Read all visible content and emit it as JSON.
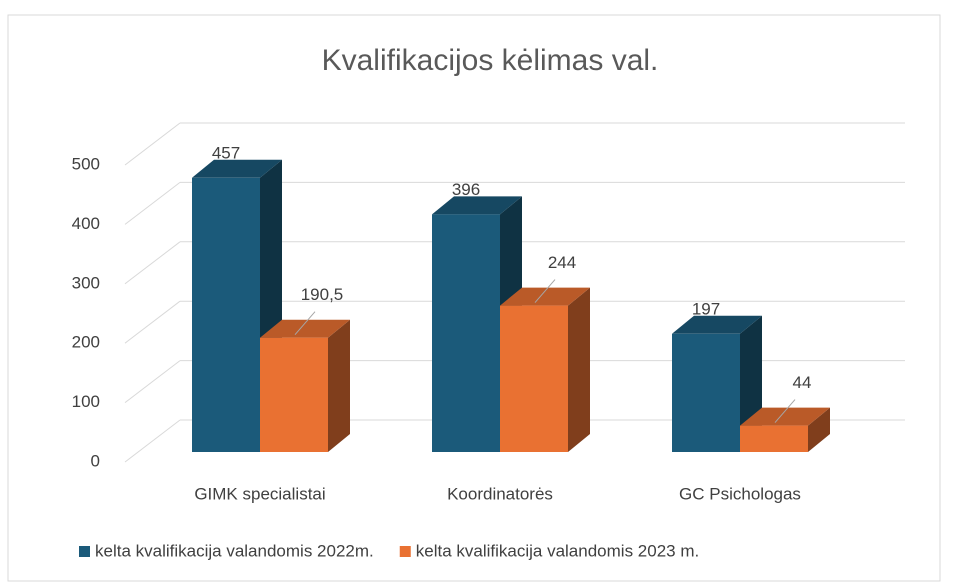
{
  "chart_data": {
    "type": "bar3d",
    "title": "Kvalifikacijos kėlimas val.",
    "categories": [
      "GIMK specialistai",
      "Koordinatorės",
      "GC Psichologas"
    ],
    "series": [
      {
        "name": "kelta kvalifikacija valandomis 2022m.",
        "color": "#1b5a7a",
        "values": [
          457,
          396,
          197
        ]
      },
      {
        "name": "kelta kvalifikacija valandomis 2023 m.",
        "color": "#e97132",
        "values": [
          190.5,
          244,
          44
        ],
        "value_labels": [
          "190,5",
          "244",
          "44"
        ]
      }
    ],
    "ylim": [
      0,
      500
    ],
    "yticks": [
      0,
      100,
      200,
      300,
      400,
      500
    ],
    "grid": true,
    "legend": "bottom"
  }
}
